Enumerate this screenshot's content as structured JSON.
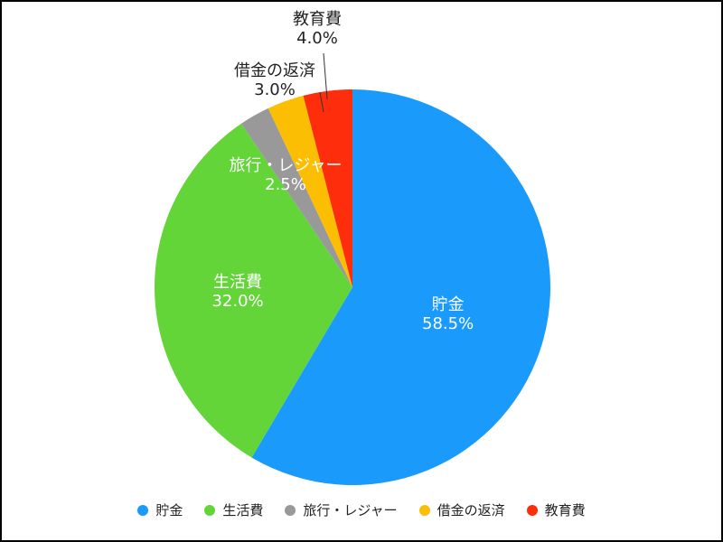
{
  "chart_data": {
    "type": "pie",
    "title": "",
    "slices": [
      {
        "label": "貯金",
        "value": 58.5,
        "value_text": "58.5%",
        "color": "#1a9bfc"
      },
      {
        "label": "生活費",
        "value": 32.0,
        "value_text": "32.0%",
        "color": "#63d538"
      },
      {
        "label": "旅行・レジャー",
        "value": 2.5,
        "value_text": "2.5%",
        "color": "#999999"
      },
      {
        "label": "借金の返済",
        "value": 3.0,
        "value_text": "3.0%",
        "color": "#fbbe03"
      },
      {
        "label": "教育費",
        "value": 4.0,
        "value_text": "4.0%",
        "color": "#fe2d0c"
      }
    ],
    "legend_position": "bottom",
    "start_angle": "12 o'clock",
    "direction": "clockwise"
  }
}
